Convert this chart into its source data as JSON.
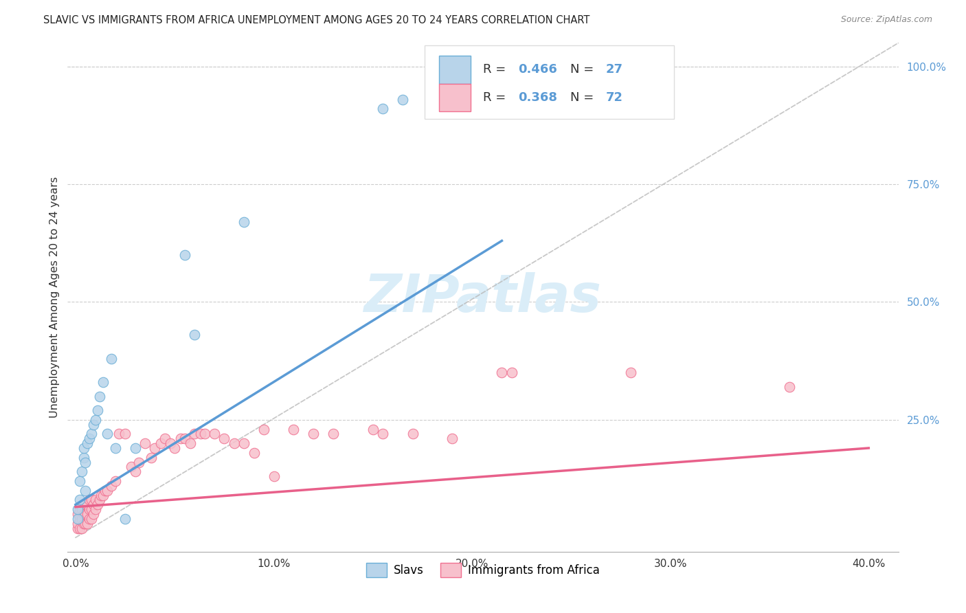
{
  "title": "SLAVIC VS IMMIGRANTS FROM AFRICA UNEMPLOYMENT AMONG AGES 20 TO 24 YEARS CORRELATION CHART",
  "source": "Source: ZipAtlas.com",
  "ylabel": "Unemployment Among Ages 20 to 24 years",
  "xtick_labels": [
    "0.0%",
    "",
    "10.0%",
    "",
    "20.0%",
    "",
    "30.0%",
    "",
    "40.0%"
  ],
  "xtick_vals": [
    0.0,
    0.05,
    0.1,
    0.15,
    0.2,
    0.25,
    0.3,
    0.35,
    0.4
  ],
  "ytick_labels_right": [
    "100.0%",
    "75.0%",
    "50.0%",
    "25.0%"
  ],
  "ytick_vals_right": [
    1.0,
    0.75,
    0.5,
    0.25
  ],
  "legend_label1": "Slavs",
  "legend_label2": "Immigrants from Africa",
  "r1": "0.466",
  "n1": "27",
  "r2": "0.368",
  "n2": "72",
  "color_slavs_fill": "#b8d4ea",
  "color_slavs_edge": "#6aaed6",
  "color_africa_fill": "#f7c0cc",
  "color_africa_edge": "#f07090",
  "color_slavs_line": "#5b9bd5",
  "color_africa_line": "#e8608a",
  "color_diag": "#bbbbbb",
  "color_right_tick": "#5b9bd5",
  "watermark_color": "#daedf8",
  "grid_color": "#cccccc",
  "slavs_x": [
    0.001,
    0.001,
    0.002,
    0.002,
    0.003,
    0.004,
    0.004,
    0.005,
    0.005,
    0.006,
    0.007,
    0.008,
    0.009,
    0.01,
    0.011,
    0.012,
    0.014,
    0.016,
    0.018,
    0.02,
    0.025,
    0.03,
    0.055,
    0.06,
    0.085,
    0.155,
    0.165
  ],
  "slavs_y": [
    0.04,
    0.06,
    0.08,
    0.12,
    0.14,
    0.17,
    0.19,
    0.1,
    0.16,
    0.2,
    0.21,
    0.22,
    0.24,
    0.25,
    0.27,
    0.3,
    0.33,
    0.22,
    0.38,
    0.19,
    0.04,
    0.19,
    0.6,
    0.43,
    0.67,
    0.91,
    0.93
  ],
  "africa_x": [
    0.001,
    0.001,
    0.001,
    0.002,
    0.002,
    0.002,
    0.003,
    0.003,
    0.003,
    0.004,
    0.004,
    0.004,
    0.005,
    0.005,
    0.005,
    0.006,
    0.006,
    0.006,
    0.007,
    0.007,
    0.007,
    0.008,
    0.008,
    0.008,
    0.009,
    0.009,
    0.01,
    0.01,
    0.011,
    0.012,
    0.013,
    0.014,
    0.015,
    0.016,
    0.018,
    0.02,
    0.022,
    0.025,
    0.028,
    0.03,
    0.032,
    0.035,
    0.038,
    0.04,
    0.043,
    0.045,
    0.048,
    0.05,
    0.053,
    0.055,
    0.058,
    0.06,
    0.063,
    0.065,
    0.07,
    0.075,
    0.08,
    0.085,
    0.09,
    0.095,
    0.1,
    0.11,
    0.12,
    0.13,
    0.15,
    0.155,
    0.17,
    0.19,
    0.215,
    0.22,
    0.28,
    0.36
  ],
  "africa_y": [
    0.02,
    0.03,
    0.05,
    0.02,
    0.04,
    0.06,
    0.02,
    0.04,
    0.06,
    0.03,
    0.05,
    0.07,
    0.03,
    0.05,
    0.07,
    0.03,
    0.05,
    0.07,
    0.04,
    0.06,
    0.08,
    0.04,
    0.06,
    0.08,
    0.05,
    0.07,
    0.06,
    0.08,
    0.07,
    0.08,
    0.09,
    0.09,
    0.1,
    0.1,
    0.11,
    0.12,
    0.22,
    0.22,
    0.15,
    0.14,
    0.16,
    0.2,
    0.17,
    0.19,
    0.2,
    0.21,
    0.2,
    0.19,
    0.21,
    0.21,
    0.2,
    0.22,
    0.22,
    0.22,
    0.22,
    0.21,
    0.2,
    0.2,
    0.18,
    0.23,
    0.13,
    0.23,
    0.22,
    0.22,
    0.23,
    0.22,
    0.22,
    0.21,
    0.35,
    0.35,
    0.35,
    0.32
  ],
  "slavs_line_x": [
    0.0,
    0.215
  ],
  "slavs_line_y": [
    0.07,
    0.63
  ],
  "africa_line_x": [
    0.0,
    0.4
  ],
  "africa_line_y": [
    0.065,
    0.19
  ],
  "xmin": -0.004,
  "xmax": 0.415,
  "ymin": -0.03,
  "ymax": 1.05
}
